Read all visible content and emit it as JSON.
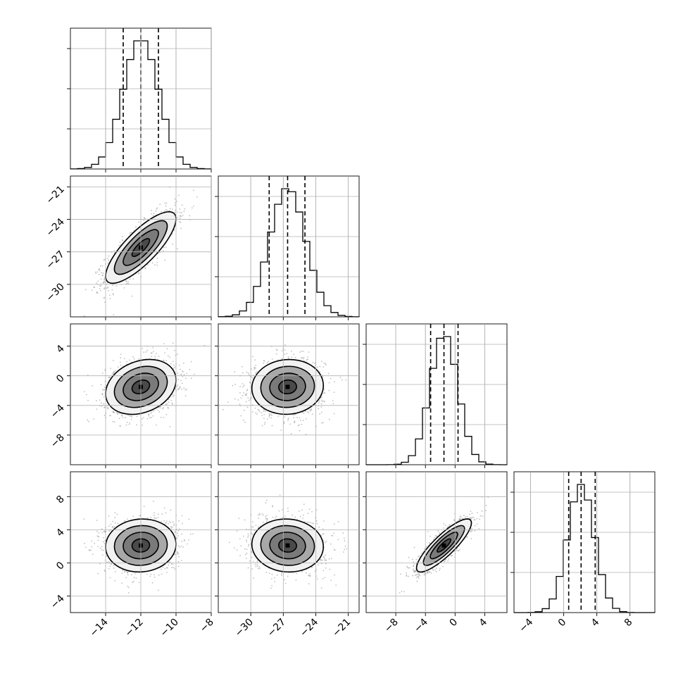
{
  "chart_data": {
    "type": "corner",
    "grid": true,
    "parameters": [
      {
        "index": 0,
        "range": [
          -16,
          -8
        ],
        "ticks": [
          -14,
          -12,
          -10,
          -8
        ],
        "tick_labels": [
          "−14",
          "−12",
          "−10",
          "−8"
        ],
        "median": -12.0,
        "q16": -13.0,
        "q84": -11.0,
        "sigma": 1.0
      },
      {
        "index": 1,
        "range": [
          -33,
          -20
        ],
        "ticks": [
          -30,
          -27,
          -24,
          -21
        ],
        "tick_labels": [
          "−30",
          "−27",
          "−24",
          "−21"
        ],
        "median": -26.6,
        "q16": -28.3,
        "q84": -25.0,
        "sigma": 1.65
      },
      {
        "index": 2,
        "range": [
          -12,
          7
        ],
        "ticks": [
          -8,
          -4,
          0,
          4
        ],
        "tick_labels": [
          "−8",
          "−4",
          "0",
          "4"
        ],
        "median": -1.5,
        "q16": -3.3,
        "q84": 0.4,
        "sigma": 1.85
      },
      {
        "index": 3,
        "range": [
          -6,
          11
        ],
        "ticks": [
          -4,
          0,
          4,
          8
        ],
        "tick_labels": [
          "−4",
          "0",
          "4",
          "8"
        ],
        "median": 2.1,
        "q16": 0.6,
        "q84": 3.8,
        "sigma": 1.6
      }
    ],
    "correlations": [
      {
        "i": 1,
        "j": 0,
        "rho": 0.8
      },
      {
        "i": 2,
        "j": 0,
        "rho": 0.25
      },
      {
        "i": 2,
        "j": 1,
        "rho": 0.05
      },
      {
        "i": 3,
        "j": 0,
        "rho": 0.05
      },
      {
        "i": 3,
        "j": 1,
        "rho": -0.05
      },
      {
        "i": 3,
        "j": 2,
        "rho": 0.85
      }
    ],
    "histogram_bins": 20,
    "quantiles": [
      0.16,
      0.5,
      0.84
    ],
    "contour_levels_sigma": [
      0.5,
      1.0,
      1.5,
      2.0
    ],
    "colors": {
      "line": "#000000",
      "scatter": "#8c8c8c",
      "grid": "#b0b0b0"
    }
  }
}
